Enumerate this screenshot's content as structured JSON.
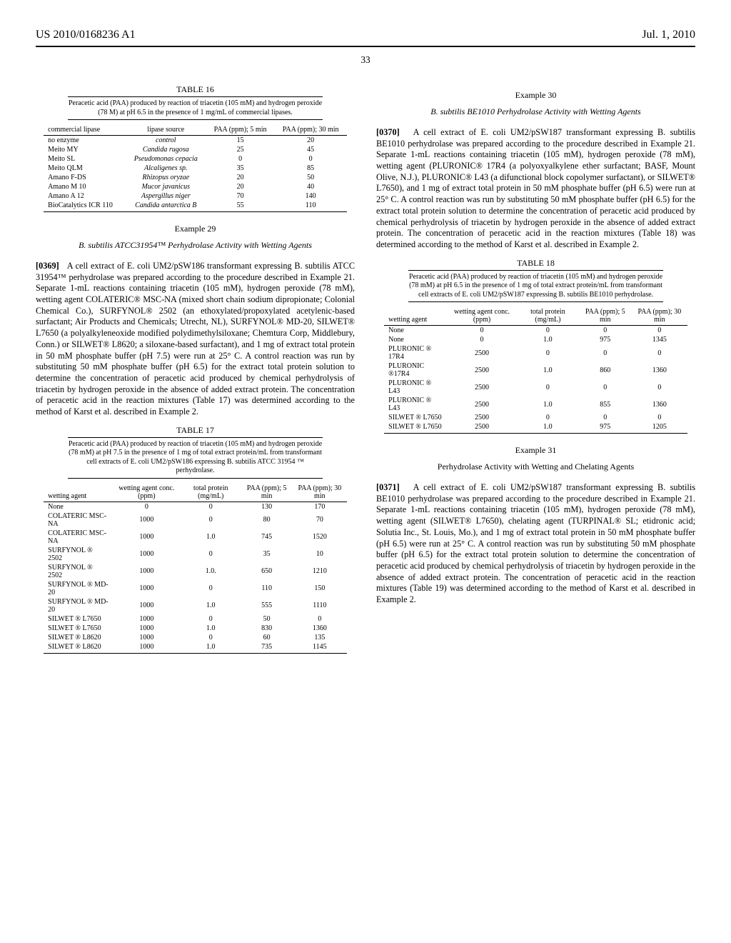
{
  "header": {
    "left": "US 2010/0168236 A1",
    "right": "Jul. 1, 2010",
    "page_number": "33"
  },
  "table16": {
    "label": "TABLE 16",
    "caption": "Peracetic acid (PAA) produced by reaction of triacetin (105 mM) and hydrogen peroxide (78 M) at pH 6.5 in the presence of 1 mg/mL of commercial lipases.",
    "headers": [
      "commercial lipase",
      "lipase source",
      "PAA (ppm); 5 min",
      "PAA (ppm); 30 min"
    ],
    "rows": [
      [
        "no enzyme",
        "control",
        "15",
        "20"
      ],
      [
        "Meito MY",
        "Candida rugosa",
        "25",
        "45"
      ],
      [
        "Meito SL",
        "Pseudomonas cepacia",
        "0",
        "0"
      ],
      [
        "Meito QLM",
        "Alcaligenes sp.",
        "35",
        "85"
      ],
      [
        "Amano F-DS",
        "Rhizopus oryzae",
        "20",
        "50"
      ],
      [
        "Amano M 10",
        "Mucor javanicus",
        "20",
        "40"
      ],
      [
        "Amano A 12",
        "Aspergillus niger",
        "70",
        "140"
      ],
      [
        "BioCatalytics ICR 110",
        "Candida antarctica B",
        "55",
        "110"
      ]
    ],
    "italic_col": 1
  },
  "example29": {
    "title": "Example 29",
    "subtitle": "B. subtilis ATCC31954™ Perhydrolase Activity with Wetting Agents",
    "para_num": "[0369]",
    "body": "A cell extract of E. coli UM2/pSW186 transformant expressing B. subtilis ATCC 31954™ perhydrolase was prepared according to the procedure described in Example 21. Separate 1-mL reactions containing triacetin (105 mM), hydrogen peroxide (78 mM), wetting agent COLATERIC® MSC-NA (mixed short chain sodium dipropionate; Colonial Chemical Co.), SURFYNOL® 2502 (an ethoxylated/propoxylated acetylenic-based surfactant; Air Products and Chemicals; Utrecht, NL), SURFYNOL® MD-20, SILWET® L7650 (a polyalkyleneoxide modified polydimethylsiloxane; Chemtura Corp, Middlebury, Conn.) or SILWET® L8620; a siloxane-based surfactant), and 1 mg of extract total protein in 50 mM phosphate buffer (pH 7.5) were run at 25° C. A control reaction was run by substituting 50 mM phosphate buffer (pH 6.5) for the extract total protein solution to determine the concentration of peracetic acid produced by chemical perhydrolysis of triacetin by hydrogen peroxide in the absence of added extract protein. The concentration of peracetic acid in the reaction mixtures (Table 17) was determined according to the method of Karst et al. described in Example 2."
  },
  "table17": {
    "label": "TABLE 17",
    "caption": "Peracetic acid (PAA) produced by reaction of triacetin (105 mM) and hydrogen peroxide (78 mM) at pH 7.5 in the presence of 1 mg of total extract protein/mL from transformant cell extracts of E. coli UM2/pSW186 expressing B. subtilis ATCC 31954 ™ perhydrolase.",
    "headers": [
      "wetting agent",
      "wetting agent conc. (ppm)",
      "total protein (mg/mL)",
      "PAA (ppm); 5 min",
      "PAA (ppm); 30 min"
    ],
    "rows": [
      [
        "None",
        "0",
        "0",
        "130",
        "170"
      ],
      [
        "COLATERIC MSC-NA",
        "1000",
        "0",
        "80",
        "70"
      ],
      [
        "COLATERIC MSC-NA",
        "1000",
        "1.0",
        "745",
        "1520"
      ],
      [
        "SURFYNOL ® 2502",
        "1000",
        "0",
        "35",
        "10"
      ],
      [
        "SURFYNOL ® 2502",
        "1000",
        "1.0.",
        "650",
        "1210"
      ],
      [
        "SURFYNOL ® MD-20",
        "1000",
        "0",
        "110",
        "150"
      ],
      [
        "SURFYNOL ® MD-20",
        "1000",
        "1.0",
        "555",
        "1110"
      ],
      [
        "SILWET ® L7650",
        "1000",
        "0",
        "50",
        "0"
      ],
      [
        "SILWET ® L7650",
        "1000",
        "1.0",
        "830",
        "1360"
      ],
      [
        "SILWET ® L8620",
        "1000",
        "0",
        "60",
        "135"
      ],
      [
        "SILWET ® L8620",
        "1000",
        "1.0",
        "735",
        "1145"
      ]
    ]
  },
  "example30": {
    "title": "Example 30",
    "subtitle": "B. subtilis BE1010 Perhydrolase Activity with Wetting Agents",
    "para_num": "[0370]",
    "body": "A cell extract of E. coli UM2/pSW187 transformant expressing B. subtilis BE1010 perhydrolase was prepared according to the procedure described in Example 21. Separate 1-mL reactions containing triacetin (105 mM), hydrogen peroxide (78 mM), wetting agent (PLURONIC® 17R4 (a polyoxyalkylene ether surfactant; BASF, Mount Olive, N.J.), PLURONIC® L43 (a difunctional block copolymer surfactant), or SILWET® L7650), and 1 mg of extract total protein in 50 mM phosphate buffer (pH 6.5) were run at 25° C. A control reaction was run by substituting 50 mM phosphate buffer (pH 6.5) for the extract total protein solution to determine the concentration of peracetic acid produced by chemical perhydrolysis of triacetin by hydrogen peroxide in the absence of added extract protein. The concentration of peracetic acid in the reaction mixtures (Table 18) was determined according to the method of Karst et al. described in Example 2."
  },
  "table18": {
    "label": "TABLE 18",
    "caption": "Peracetic acid (PAA) produced by reaction of triacetin (105 mM) and hydrogen peroxide (78 mM) at pH 6.5 in the presence of 1 mg of total extract protein/mL from transformant cell extracts of E. coli UM2/pSW187 expressing B. subtilis BE1010 perhydrolase.",
    "headers": [
      "wetting agent",
      "wetting agent conc. (ppm)",
      "total protein (mg/mL)",
      "PAA (ppm); 5 min",
      "PAA (ppm); 30 min"
    ],
    "rows": [
      [
        "None",
        "0",
        "0",
        "0",
        "0"
      ],
      [
        "None",
        "0",
        "1.0",
        "975",
        "1345"
      ],
      [
        "PLURONIC ® 17R4",
        "2500",
        "0",
        "0",
        "0"
      ],
      [
        "PLURONIC ®17R4",
        "2500",
        "1.0",
        "860",
        "1360"
      ],
      [
        "PLURONIC ® L43",
        "2500",
        "0",
        "0",
        "0"
      ],
      [
        "PLURONIC ® L43",
        "2500",
        "1.0",
        "855",
        "1360"
      ],
      [
        "SILWET ® L7650",
        "2500",
        "0",
        "0",
        "0"
      ],
      [
        "SILWET ® L7650",
        "2500",
        "1.0",
        "975",
        "1205"
      ]
    ]
  },
  "example31": {
    "title": "Example 31",
    "subtitle": "Perhydrolase Activity with Wetting and Chelating Agents",
    "para_num": "[0371]",
    "body": "A cell extract of E. coli UM2/pSW187 transformant expressing B. subtilis BE1010 perhydrolase was prepared according to the procedure described in Example 21. Separate 1-mL reactions containing triacetin (105 mM), hydrogen peroxide (78 mM), wetting agent (SILWET® L7650), chelating agent (TURPINAL® SL; etidronic acid; Solutia Inc., St. Louis, Mo.), and 1 mg of extract total protein in 50 mM phosphate buffer (pH 6.5) were run at 25° C. A control reaction was run by substituting 50 mM phosphate buffer (pH 6.5) for the extract total protein solution to determine the concentration of peracetic acid produced by chemical perhydrolysis of triacetin by hydrogen peroxide in the absence of added extract protein. The concentration of peracetic acid in the reaction mixtures (Table 19) was determined according to the method of Karst et al. described in Example 2."
  }
}
